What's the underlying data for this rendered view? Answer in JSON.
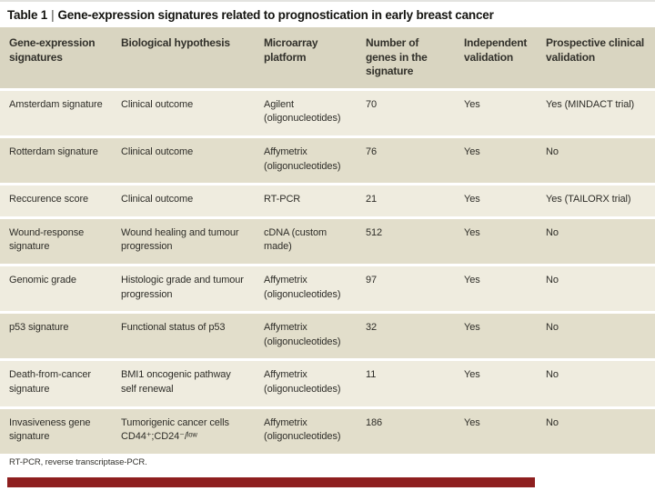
{
  "table": {
    "title": {
      "prefix": "Table 1",
      "separator": "|",
      "text": "Gene-expression signatures related to prognostication in early breast cancer"
    },
    "columns": [
      "Gene-expression signatures",
      "Biological hypothesis",
      "Microarray platform",
      "Number of genes in the signature",
      "Independent validation",
      "Prospective clinical validation"
    ],
    "rows": [
      [
        "Amsterdam signature",
        "Clinical outcome",
        "Agilent (oligonucleotides)",
        "70",
        "Yes",
        "Yes (MINDACT trial)"
      ],
      [
        "Rotterdam signature",
        "Clinical outcome",
        "Affymetrix (oligonucleotides)",
        "76",
        "Yes",
        "No"
      ],
      [
        "Reccurence score",
        "Clinical outcome",
        "RT-PCR",
        "21",
        "Yes",
        "Yes (TAILORX trial)"
      ],
      [
        "Wound-response signature",
        "Wound healing and tumour progression",
        "cDNA (custom made)",
        "512",
        "Yes",
        "No"
      ],
      [
        "Genomic grade",
        "Histologic grade and tumour progression",
        "Affymetrix (oligonucleotides)",
        "97",
        "Yes",
        "No"
      ],
      [
        "p53 signature",
        "Functional status of p53",
        "Affymetrix (oligonucleotides)",
        "32",
        "Yes",
        "No"
      ],
      [
        "Death-from-cancer signature",
        "BMI1 oncogenic pathway self renewal",
        "Affymetrix (oligonucleotides)",
        "11",
        "Yes",
        "No"
      ],
      [
        "Invasiveness gene signature",
        "Tumorigenic cancer cells CD44⁺;CD24⁻/ˡᵒʷ",
        "Affymetrix (oligonucleotides)",
        "186",
        "Yes",
        "No"
      ]
    ],
    "footnote": "RT-PCR, reverse transcriptase-PCR.",
    "colors": {
      "header_bg": "#d9d5c1",
      "row_odd_bg": "#efecdf",
      "row_even_bg": "#e2decb",
      "text": "#2e2d28",
      "accent_bar": "#8e1f1f"
    }
  }
}
